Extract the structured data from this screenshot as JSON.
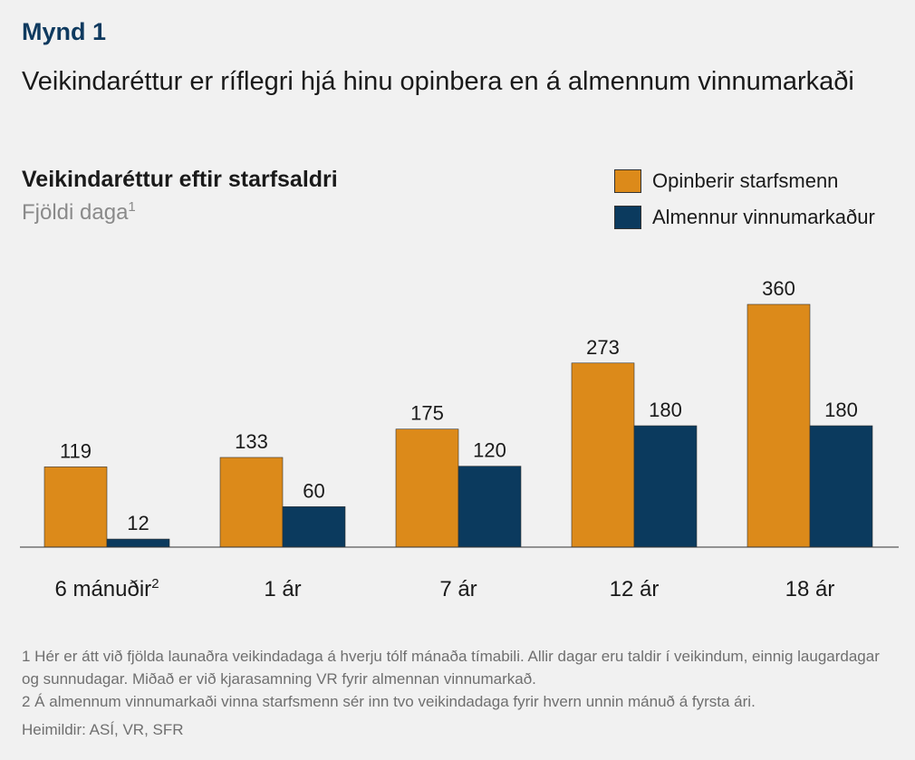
{
  "figure_label": "Mynd 1",
  "headline": "Veikindaréttur er ríflegri hjá hinu opinbera en á almennum vinnumarkaði",
  "chart_data": {
    "type": "bar",
    "title": "Veikindaréttur eftir starfsaldri",
    "subtitle": "Fjöldi daga",
    "subtitle_sup": "1",
    "categories": [
      "6 mánuðir",
      "1 ár",
      "7 ár",
      "12 ár",
      "18 ár"
    ],
    "category_sups": [
      "2",
      "",
      "",
      "",
      ""
    ],
    "series": [
      {
        "name": "Opinberir starfsmenn",
        "color": "#dc8a1a",
        "values": [
          119,
          133,
          175,
          273,
          360
        ]
      },
      {
        "name": "Almennur vinnumarkaður",
        "color": "#0b3a5e",
        "values": [
          12,
          60,
          120,
          180,
          180
        ]
      }
    ],
    "ylim": [
      0,
      360
    ],
    "grid": false,
    "legend_position": "top-right"
  },
  "footnotes": [
    "1 Hér er átt við fjölda launaðra veikindadaga á hverju tólf mánaða tímabili. Allir dagar eru taldir í veikindum, einnig laugardagar og sunnudagar.  Miðað er við kjarasamning VR fyrir almennan vinnumarkað.",
    "2 Á almennum vinnumarkaði vinna starfsmenn sér inn tvo veikindadaga fyrir hvern unnin mánuð á fyrsta ári."
  ],
  "sources": "Heimildir: ASÍ, VR, SFR"
}
